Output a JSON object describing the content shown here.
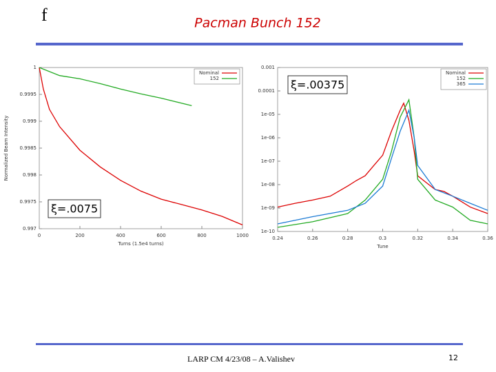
{
  "slide": {
    "logo": "f",
    "title": "Pacman Bunch 152",
    "footer": "LARP CM 4/23/08 – A.Valishev",
    "page": "12"
  },
  "chart_data": [
    {
      "type": "line",
      "annotation": "ξ=.0075",
      "xlabel": "Turns (1.5e4 turns)",
      "ylabel": "Normalized Beam Intensity",
      "xlim": [
        0,
        1000
      ],
      "xticks": [
        0,
        200,
        400,
        600,
        800,
        1000
      ],
      "ylim": [
        0.997,
        1
      ],
      "yticks": [
        0.997,
        0.9975,
        0.998,
        0.9985,
        0.999,
        0.9995,
        1
      ],
      "log_y": false,
      "legend": "upper right",
      "series": [
        {
          "name": "Nominal",
          "color": "#dd0000",
          "x": [
            0,
            20,
            50,
            100,
            200,
            300,
            400,
            500,
            600,
            700,
            800,
            900,
            1000
          ],
          "values": [
            1,
            0.9996,
            0.99922,
            0.9989,
            0.99846,
            0.99815,
            0.9979,
            0.9977,
            0.99755,
            0.99745,
            0.99735,
            0.99723,
            0.99707
          ]
        },
        {
          "name": "152",
          "color": "#22aa22",
          "x": [
            0,
            100,
            200,
            300,
            400,
            500,
            600,
            750
          ],
          "values": [
            1,
            0.99985,
            0.99979,
            0.9997,
            0.9996,
            0.99951,
            0.99943,
            0.99929
          ]
        }
      ]
    },
    {
      "type": "line",
      "annotation": "ξ=.00375",
      "xlabel": "Tune",
      "xlim": [
        0.24,
        0.36
      ],
      "xticks": [
        0.24,
        0.26,
        0.28,
        0.3,
        0.32,
        0.34,
        0.36
      ],
      "ylim": [
        1e-10,
        0.001
      ],
      "log_y": true,
      "legend": "upper right",
      "yticks": [
        {
          "value": 1e-10,
          "label": "1e-10"
        },
        {
          "value": 1e-09,
          "label": "1e-09"
        },
        {
          "value": 1e-08,
          "label": "1e-08"
        },
        {
          "value": 1e-07,
          "label": "1e-07"
        },
        {
          "value": 1e-06,
          "label": "1e-06"
        },
        {
          "value": 1e-05,
          "label": "1e-05"
        },
        {
          "value": 0.0001,
          "label": "0.0001"
        },
        {
          "value": 0.001,
          "label": "0.001"
        }
      ],
      "series": [
        {
          "name": "Nominal",
          "color": "#dd0000",
          "x": [
            0.24,
            0.25,
            0.26,
            0.27,
            0.28,
            0.285,
            0.29,
            0.295,
            0.3,
            0.305,
            0.31,
            0.312,
            0.315,
            0.318,
            0.32,
            0.325,
            0.33,
            0.335,
            0.34,
            0.35,
            0.36
          ],
          "values": [
            1.1e-09,
            1.6e-09,
            2.2e-09,
            3.2e-09,
            8.7e-09,
            1.5e-08,
            2.4e-08,
            6.6e-08,
            1.8e-07,
            1.9e-06,
            1.5e-05,
            3e-05,
            5.5e-06,
            2.6e-07,
            2.4e-08,
            1.2e-08,
            6.2e-09,
            5.1e-09,
            3.2e-09,
            1.1e-09,
            5.8e-10
          ]
        },
        {
          "name": "152",
          "color": "#22aa22",
          "x": [
            0.24,
            0.26,
            0.28,
            0.29,
            0.3,
            0.305,
            0.31,
            0.315,
            0.318,
            0.32,
            0.33,
            0.34,
            0.35,
            0.36
          ],
          "values": [
            1.5e-10,
            2.6e-10,
            5.8e-10,
            2.2e-09,
            1.7e-08,
            2.6e-07,
            7.6e-06,
            4.2e-05,
            1e-06,
            1.7e-08,
            2.2e-09,
            1.1e-09,
            3e-10,
            2.1e-10
          ]
        },
        {
          "name": "365",
          "color": "#1a7ad4",
          "x": [
            0.24,
            0.26,
            0.28,
            0.29,
            0.3,
            0.305,
            0.31,
            0.315,
            0.318,
            0.32,
            0.33,
            0.34,
            0.35,
            0.36
          ],
          "values": [
            2.1e-10,
            4.3e-10,
            8e-10,
            1.6e-09,
            8.7e-09,
            1.3e-07,
            1.9e-06,
            1.5e-05,
            1e-06,
            6.6e-08,
            6.2e-09,
            3.2e-09,
            1.6e-09,
            8e-10
          ]
        }
      ]
    }
  ]
}
